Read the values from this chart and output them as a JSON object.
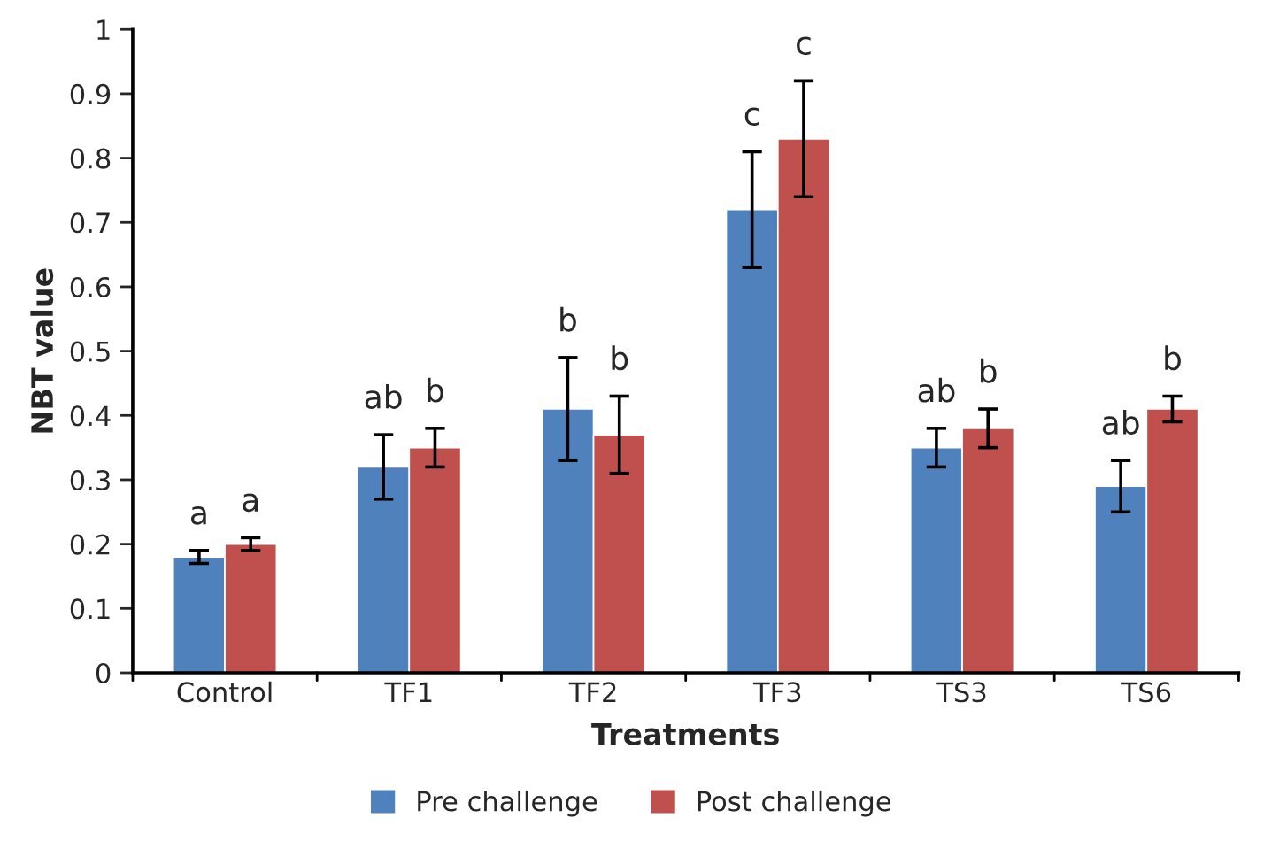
{
  "chart_data": {
    "type": "bar",
    "xlabel": "Treatments",
    "ylabel": "NBT value",
    "categories": [
      "Control",
      "TF1",
      "TF2",
      "TF3",
      "TS3",
      "TS6"
    ],
    "series": [
      {
        "name": "Pre challenge",
        "color": "#4f81bd",
        "values": [
          0.18,
          0.32,
          0.41,
          0.72,
          0.35,
          0.29
        ],
        "errors": [
          0.01,
          0.05,
          0.08,
          0.09,
          0.03,
          0.04
        ]
      },
      {
        "name": "Post challenge",
        "color": "#c0504d",
        "values": [
          0.2,
          0.35,
          0.37,
          0.83,
          0.38,
          0.41
        ],
        "errors": [
          0.01,
          0.03,
          0.06,
          0.09,
          0.03,
          0.02
        ]
      }
    ],
    "ylim": [
      0,
      1
    ],
    "yticks": [
      0,
      0.1,
      0.2,
      0.3,
      0.4,
      0.5,
      0.6,
      0.7,
      0.8,
      0.9,
      1
    ],
    "annotations": [
      "a",
      "a",
      "ab",
      "b",
      "b",
      "b",
      "c",
      "c",
      "ab",
      "b",
      "ab",
      "b"
    ],
    "grid": false,
    "legend": "bottom"
  }
}
